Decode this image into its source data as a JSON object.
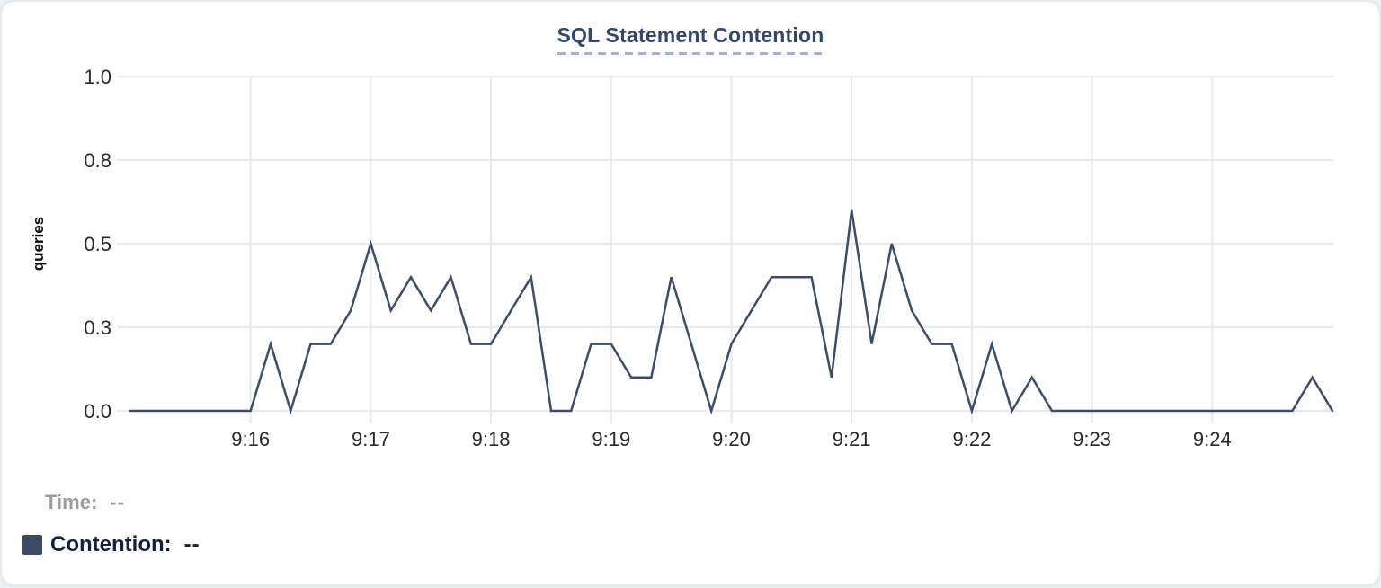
{
  "chart": {
    "title": "SQL Statement Contention"
  },
  "readouts": {
    "time_label": "Time:",
    "time_value": "--",
    "contention_label": "Contention:",
    "contention_value": "--"
  },
  "colors": {
    "line": "#3d4c68",
    "legend_swatch": "#3d4a63",
    "title": "#33476b",
    "grid": "#e9e9ed",
    "tick_text": "#28292d",
    "axis_label_text": "#0c0d0f",
    "muted_text": "#9a9ca2",
    "navy_text": "#14203c",
    "panel_bg": "#ffffff",
    "panel_border": "#e7e8ec"
  },
  "chart_data": {
    "type": "line",
    "title": "SQL Statement Contention",
    "xlabel": "",
    "ylabel": "queries",
    "grid": true,
    "legend_position": "bottom-left",
    "ylim": [
      0,
      1
    ],
    "y_ticks": [
      {
        "v": 0,
        "label": "0.0"
      },
      {
        "v": 0.25,
        "label": "0.3"
      },
      {
        "v": 0.5,
        "label": "0.5"
      },
      {
        "v": 0.75,
        "label": "0.8"
      },
      {
        "v": 1,
        "label": "1.0"
      }
    ],
    "x_start_time": "9:15:00",
    "x_end_time": "9:25:00",
    "x_interval_seconds": 10,
    "x_ticks": [
      {
        "t": 60,
        "label": "9:16"
      },
      {
        "t": 120,
        "label": "9:17"
      },
      {
        "t": 180,
        "label": "9:18"
      },
      {
        "t": 240,
        "label": "9:19"
      },
      {
        "t": 300,
        "label": "9:20"
      },
      {
        "t": 360,
        "label": "9:21"
      },
      {
        "t": 420,
        "label": "9:22"
      },
      {
        "t": 480,
        "label": "9:23"
      },
      {
        "t": 540,
        "label": "9:24"
      }
    ],
    "series": [
      {
        "name": "Contention",
        "unit": "queries",
        "color": "#3d4c68",
        "values": [
          0,
          0,
          0,
          0,
          0,
          0,
          0,
          0.2,
          0,
          0.2,
          0.2,
          0.3,
          0.5,
          0.3,
          0.4,
          0.3,
          0.4,
          0.2,
          0.2,
          0.3,
          0.4,
          0,
          0,
          0.2,
          0.2,
          0.1,
          0.1,
          0.4,
          0.2,
          0,
          0.2,
          0.3,
          0.4,
          0.4,
          0.4,
          0.1,
          0.6,
          0.2,
          0.5,
          0.3,
          0.2,
          0.2,
          0,
          0.2,
          0,
          0.1,
          0,
          0,
          0,
          0,
          0,
          0,
          0,
          0,
          0,
          0,
          0,
          0,
          0,
          0.1,
          0
        ]
      }
    ]
  }
}
